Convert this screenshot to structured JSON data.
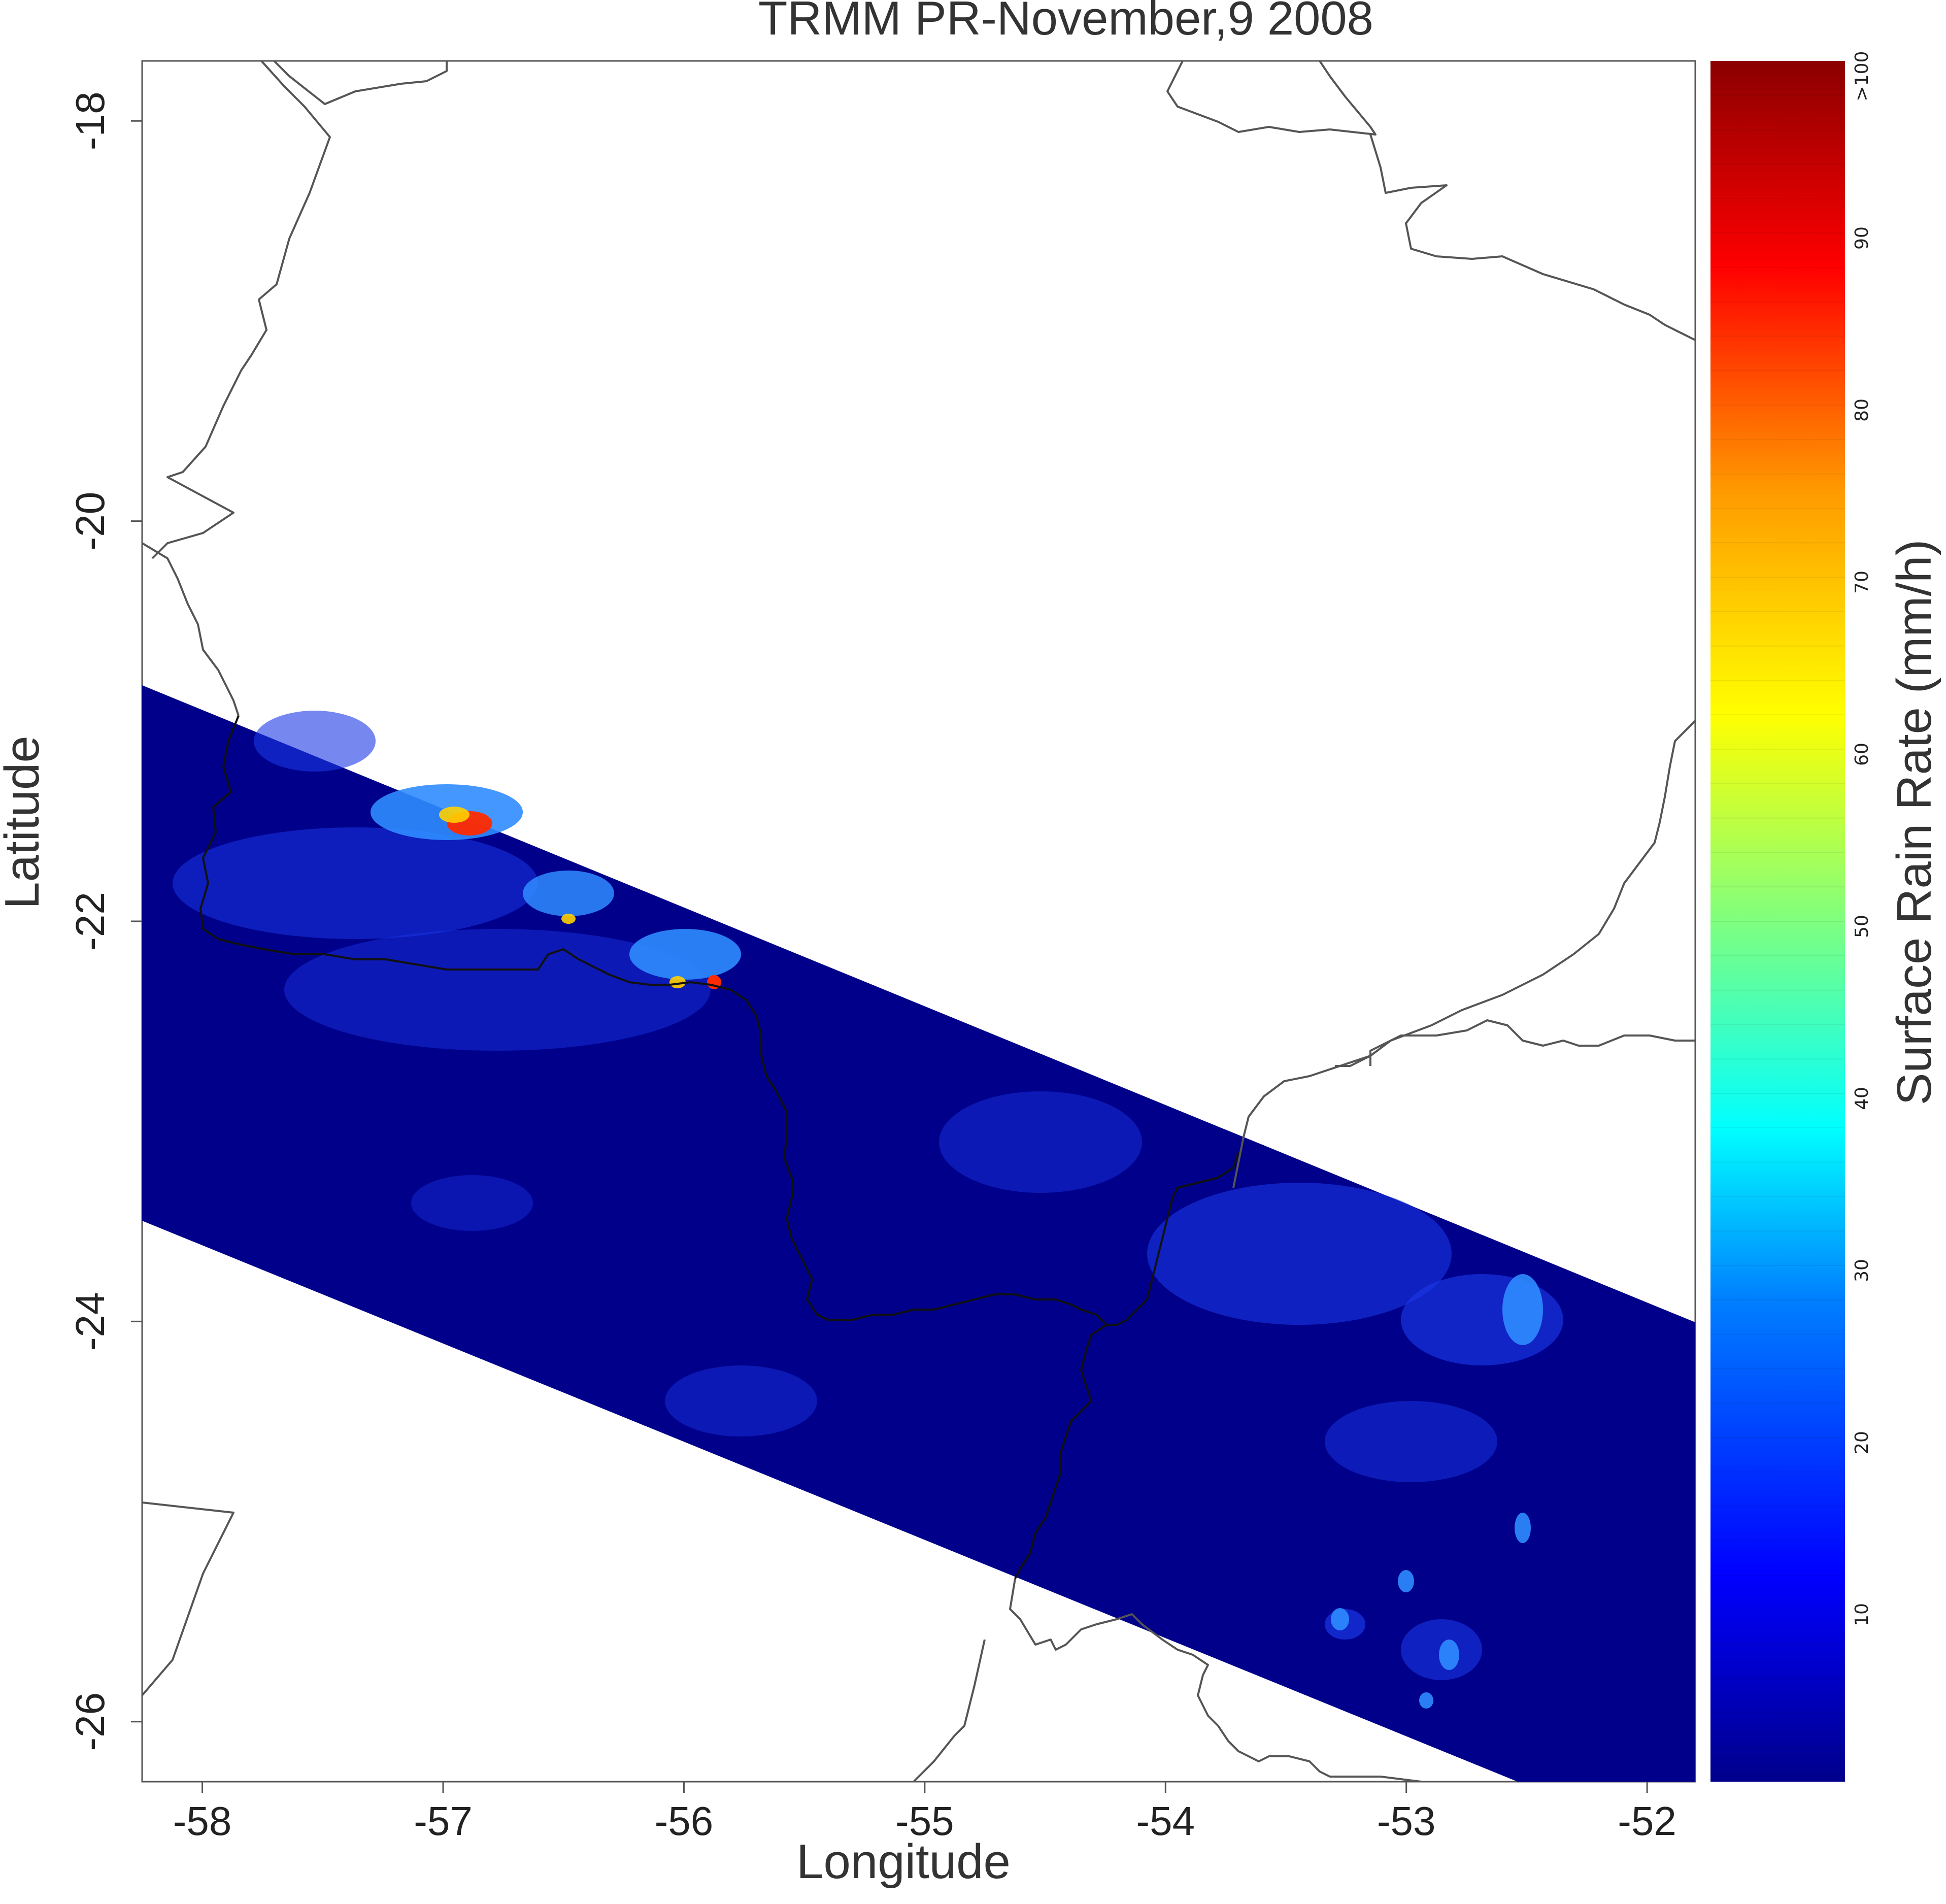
{
  "map": {
    "title": "TRMM PR-November,9 2008",
    "xlabel": "Longitude",
    "ylabel": "Latitude",
    "x_ticks": [
      "-58",
      "-57",
      "-56",
      "-55",
      "-54",
      "-53",
      "-52"
    ],
    "y_ticks": [
      "-18",
      "-20",
      "-22",
      "-24",
      "-26"
    ],
    "xlim": [
      -58.25,
      -51.8
    ],
    "ylim": [
      -26.3,
      -17.7
    ],
    "grid": false
  },
  "colorbar": {
    "label": "Surface Rain Rate (mm/h)",
    "range": [
      0,
      100
    ],
    "ticks": [
      "10",
      "20",
      "30",
      "40",
      "50",
      "60",
      "70",
      "80",
      "90",
      ">100"
    ],
    "colors": [
      "#00008b",
      "#0000ff",
      "#007fff",
      "#00ffff",
      "#7fff7f",
      "#ffff00",
      "#ff7f00",
      "#ff0000",
      "#8b0000"
    ]
  },
  "swath": {
    "background_color": "#00008b",
    "light_rain_color": "#1a37e6",
    "moderate_rain_color": "#2f8cff",
    "heavy_rain_color": "#ff2a00",
    "intense_rain_color": "#ffd000"
  }
}
